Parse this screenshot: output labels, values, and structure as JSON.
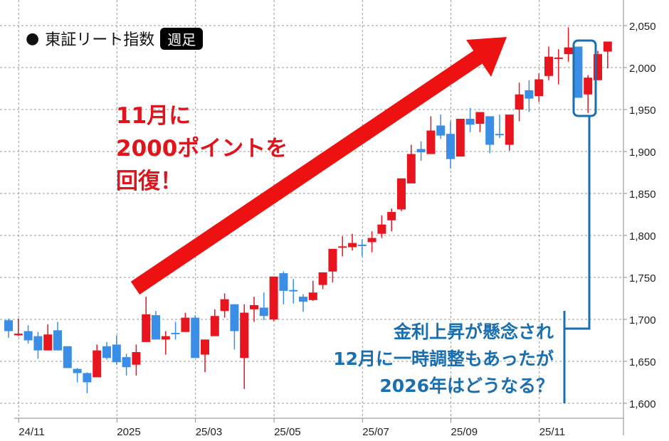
{
  "header": {
    "bullet": "●",
    "title": "東証リート指数",
    "badge": "週足"
  },
  "annotations": {
    "red": [
      "11月に",
      "2000ポイントを",
      "回復！"
    ],
    "blue": [
      "金利上昇が懸念され",
      "12月に一時調整もあったが",
      "2026年はどうなる？"
    ]
  },
  "colors": {
    "up": "#e8141e",
    "down": "#3a8ee6",
    "note_red": "#e0141c",
    "note_blue": "#1a6fb0",
    "arrow": "#ee1111"
  },
  "chart_data": {
    "type": "candlestick",
    "title": "東証リート指数",
    "interval": "週足",
    "ylim": [
      1600,
      2050
    ],
    "y_ticks": [
      1600,
      1650,
      1700,
      1750,
      1800,
      1850,
      1900,
      1950,
      2000,
      2050
    ],
    "y_tick_labels": [
      "1,600",
      "1,650",
      "1,700",
      "1,750",
      "1,800",
      "1,850",
      "1,900",
      "1,950",
      "2,000",
      "2,050"
    ],
    "y_axis_side": "right",
    "grid": true,
    "x_ticks": [
      {
        "label": "24/11",
        "at_candle": 1
      },
      {
        "label": "2025",
        "at_candle": 11
      },
      {
        "label": "25/03",
        "at_candle": 19
      },
      {
        "label": "25/05",
        "at_candle": 27
      },
      {
        "label": "25/07",
        "at_candle": 36
      },
      {
        "label": "25/09",
        "at_candle": 45
      },
      {
        "label": "25/11",
        "at_candle": 54
      }
    ],
    "candles": [
      [
        1699,
        1701,
        1678,
        1686
      ],
      [
        1681,
        1701,
        1680,
        1683
      ],
      [
        1686,
        1693,
        1671,
        1675
      ],
      [
        1680,
        1685,
        1653,
        1663
      ],
      [
        1663,
        1694,
        1663,
        1682
      ],
      [
        1687,
        1697,
        1663,
        1663
      ],
      [
        1668,
        1668,
        1642,
        1642
      ],
      [
        1641,
        1642,
        1625,
        1636
      ],
      [
        1636,
        1637,
        1612,
        1625
      ],
      [
        1631,
        1670,
        1631,
        1663
      ],
      [
        1668,
        1673,
        1652,
        1654
      ],
      [
        1670,
        1681,
        1646,
        1649
      ],
      [
        1655,
        1659,
        1633,
        1643
      ],
      [
        1646,
        1670,
        1633,
        1661
      ],
      [
        1673,
        1727,
        1673,
        1706
      ],
      [
        1705,
        1710,
        1676,
        1676
      ],
      [
        1676,
        1686,
        1658,
        1680
      ],
      [
        1684,
        1697,
        1676,
        1683
      ],
      [
        1685,
        1708,
        1685,
        1702
      ],
      [
        1702,
        1705,
        1654,
        1654
      ],
      [
        1658,
        1676,
        1637,
        1676
      ],
      [
        1680,
        1712,
        1680,
        1704
      ],
      [
        1710,
        1731,
        1702,
        1724
      ],
      [
        1718,
        1718,
        1664,
        1686
      ],
      [
        1654,
        1718,
        1617,
        1708
      ],
      [
        1712,
        1727,
        1697,
        1717
      ],
      [
        1714,
        1732,
        1699,
        1704
      ],
      [
        1700,
        1751,
        1698,
        1751
      ],
      [
        1755,
        1757,
        1718,
        1734
      ],
      [
        1735,
        1748,
        1719,
        1734
      ],
      [
        1727,
        1730,
        1709,
        1721
      ],
      [
        1723,
        1746,
        1722,
        1732
      ],
      [
        1741,
        1756,
        1736,
        1756
      ],
      [
        1757,
        1784,
        1744,
        1784
      ],
      [
        1786,
        1799,
        1775,
        1787
      ],
      [
        1786,
        1802,
        1782,
        1791
      ],
      [
        1789,
        1795,
        1775,
        1788
      ],
      [
        1792,
        1805,
        1780,
        1797
      ],
      [
        1802,
        1824,
        1797,
        1813
      ],
      [
        1818,
        1832,
        1805,
        1828
      ],
      [
        1831,
        1868,
        1829,
        1868
      ],
      [
        1862,
        1908,
        1862,
        1897
      ],
      [
        1903,
        1912,
        1889,
        1899
      ],
      [
        1897,
        1942,
        1897,
        1925
      ],
      [
        1931,
        1944,
        1915,
        1919
      ],
      [
        1921,
        1936,
        1880,
        1891
      ],
      [
        1894,
        1939,
        1894,
        1939
      ],
      [
        1939,
        1952,
        1923,
        1932
      ],
      [
        1933,
        1947,
        1923,
        1947
      ],
      [
        1942,
        1942,
        1898,
        1908
      ],
      [
        1921,
        1944,
        1916,
        1920
      ],
      [
        1908,
        1944,
        1901,
        1944
      ],
      [
        1950,
        1982,
        1936,
        1968
      ],
      [
        1973,
        1985,
        1947,
        1963
      ],
      [
        1966,
        1993,
        1959,
        1986
      ],
      [
        1990,
        2025,
        1985,
        2013
      ],
      [
        2011,
        2022,
        1980,
        2012
      ],
      [
        2016,
        2048,
        2007,
        2024
      ],
      [
        2025,
        2025,
        1964,
        1964
      ],
      [
        1968,
        1991,
        1946,
        1988
      ],
      [
        1985,
        2020,
        1985,
        2016
      ],
      [
        2019,
        2031,
        1999,
        2031
      ]
    ],
    "candle_fields": [
      "open",
      "high",
      "low",
      "close"
    ]
  }
}
